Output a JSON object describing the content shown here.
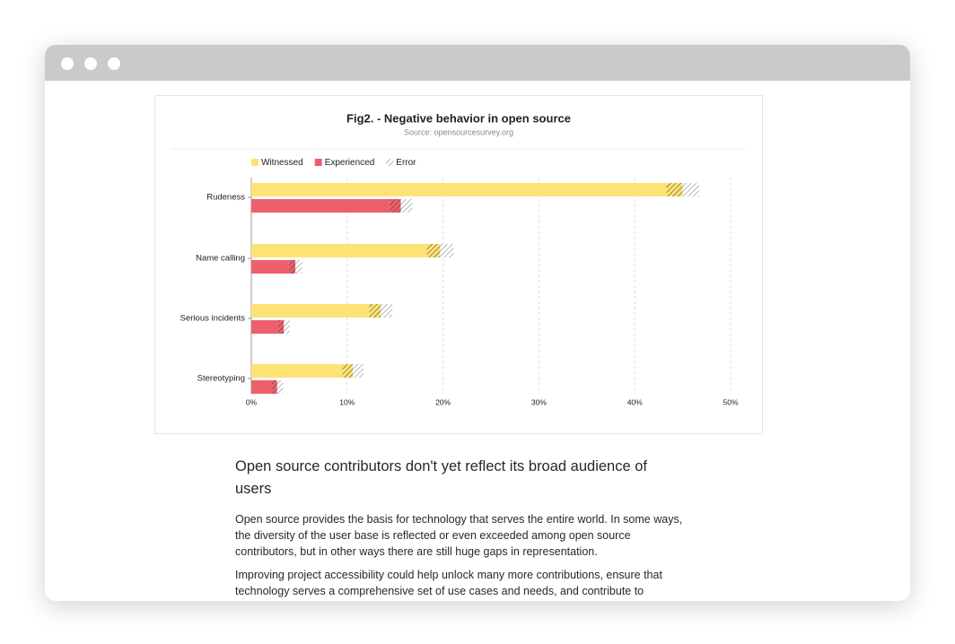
{
  "chart_data": {
    "type": "hbar-error",
    "title": "Fig2. - Negative behavior in open source",
    "subtitle": "Source: opensourcesurvey.org",
    "categories": [
      "Rudeness",
      "Name calling",
      "Serious incidents",
      "Stereotyping"
    ],
    "series": [
      {
        "name": "Witnessed",
        "color": "#fde373",
        "values": [
          45,
          19.7,
          13.5,
          10.6
        ],
        "errors": [
          1.7,
          1.4,
          1.2,
          1.1
        ]
      },
      {
        "name": "Experienced",
        "color": "#ee5f6c",
        "values": [
          15.6,
          4.6,
          3.4,
          2.7
        ],
        "errors": [
          1.2,
          0.7,
          0.6,
          0.6
        ]
      }
    ],
    "error_legend": "Error",
    "xlim": [
      0,
      50
    ],
    "xticks": [
      {
        "value": 0,
        "label": "0%"
      },
      {
        "value": 10,
        "label": "10%"
      },
      {
        "value": 20,
        "label": "20%"
      },
      {
        "value": 30,
        "label": "30%"
      },
      {
        "value": 40,
        "label": "40%"
      },
      {
        "value": 50,
        "label": "50%"
      }
    ],
    "grid": true
  },
  "article": {
    "heading": "Open source contributors don't yet reflect its broad audience of users",
    "paragraphs": [
      "Open source provides the basis for technology that serves the entire world. In some ways, the diversity of the user base is reflected or even exceeded among open source contributors, but in other ways there are still huge gaps in representation.",
      "Improving project accessibility could help unlock many more contributions, ensure that technology serves a comprehensive set of use cases and needs, and contribute to"
    ]
  }
}
